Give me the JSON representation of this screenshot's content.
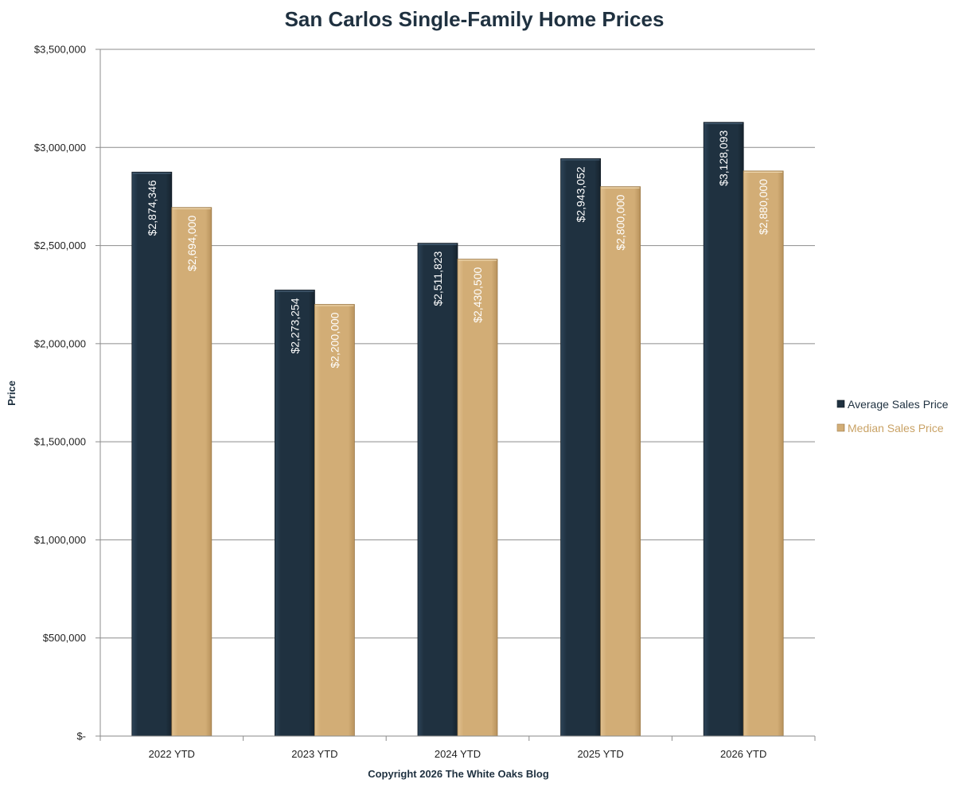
{
  "chart_data": {
    "type": "bar",
    "title": "San Carlos Single-Family Home Prices",
    "xlabel": "Copyright 2026 The White  Oaks Blog",
    "ylabel": "Price",
    "categories": [
      "2022 YTD",
      "2023 YTD",
      "2024 YTD",
      "2025 YTD",
      "2026 YTD"
    ],
    "series": [
      {
        "name": "Average Sales Price",
        "color": "#1f3140",
        "values": [
          2874346,
          2273254,
          2511823,
          2943052,
          3128093
        ],
        "labels": [
          "$2,874,346",
          "$2,273,254",
          "$2,511,823",
          "$2,943,052",
          "$3,128,093"
        ]
      },
      {
        "name": "Median Sales Price",
        "color": "#d2ad76",
        "values": [
          2694000,
          2200000,
          2430500,
          2800000,
          2880000
        ],
        "labels": [
          "$2,694,000",
          "$2,200,000",
          "$2,430,500",
          "$2,800,000",
          "$2,880,000"
        ]
      }
    ],
    "ylim": [
      0,
      3500000
    ],
    "yticks": [
      0,
      500000,
      1000000,
      1500000,
      2000000,
      2500000,
      3000000,
      3500000
    ],
    "ytick_labels": [
      "$-",
      "$500,000",
      "$1,000,000",
      "$1,500,000",
      "$2,000,000",
      "$2,500,000",
      "$3,000,000",
      "$3,500,000"
    ],
    "grid": true,
    "legend_position": "right"
  }
}
